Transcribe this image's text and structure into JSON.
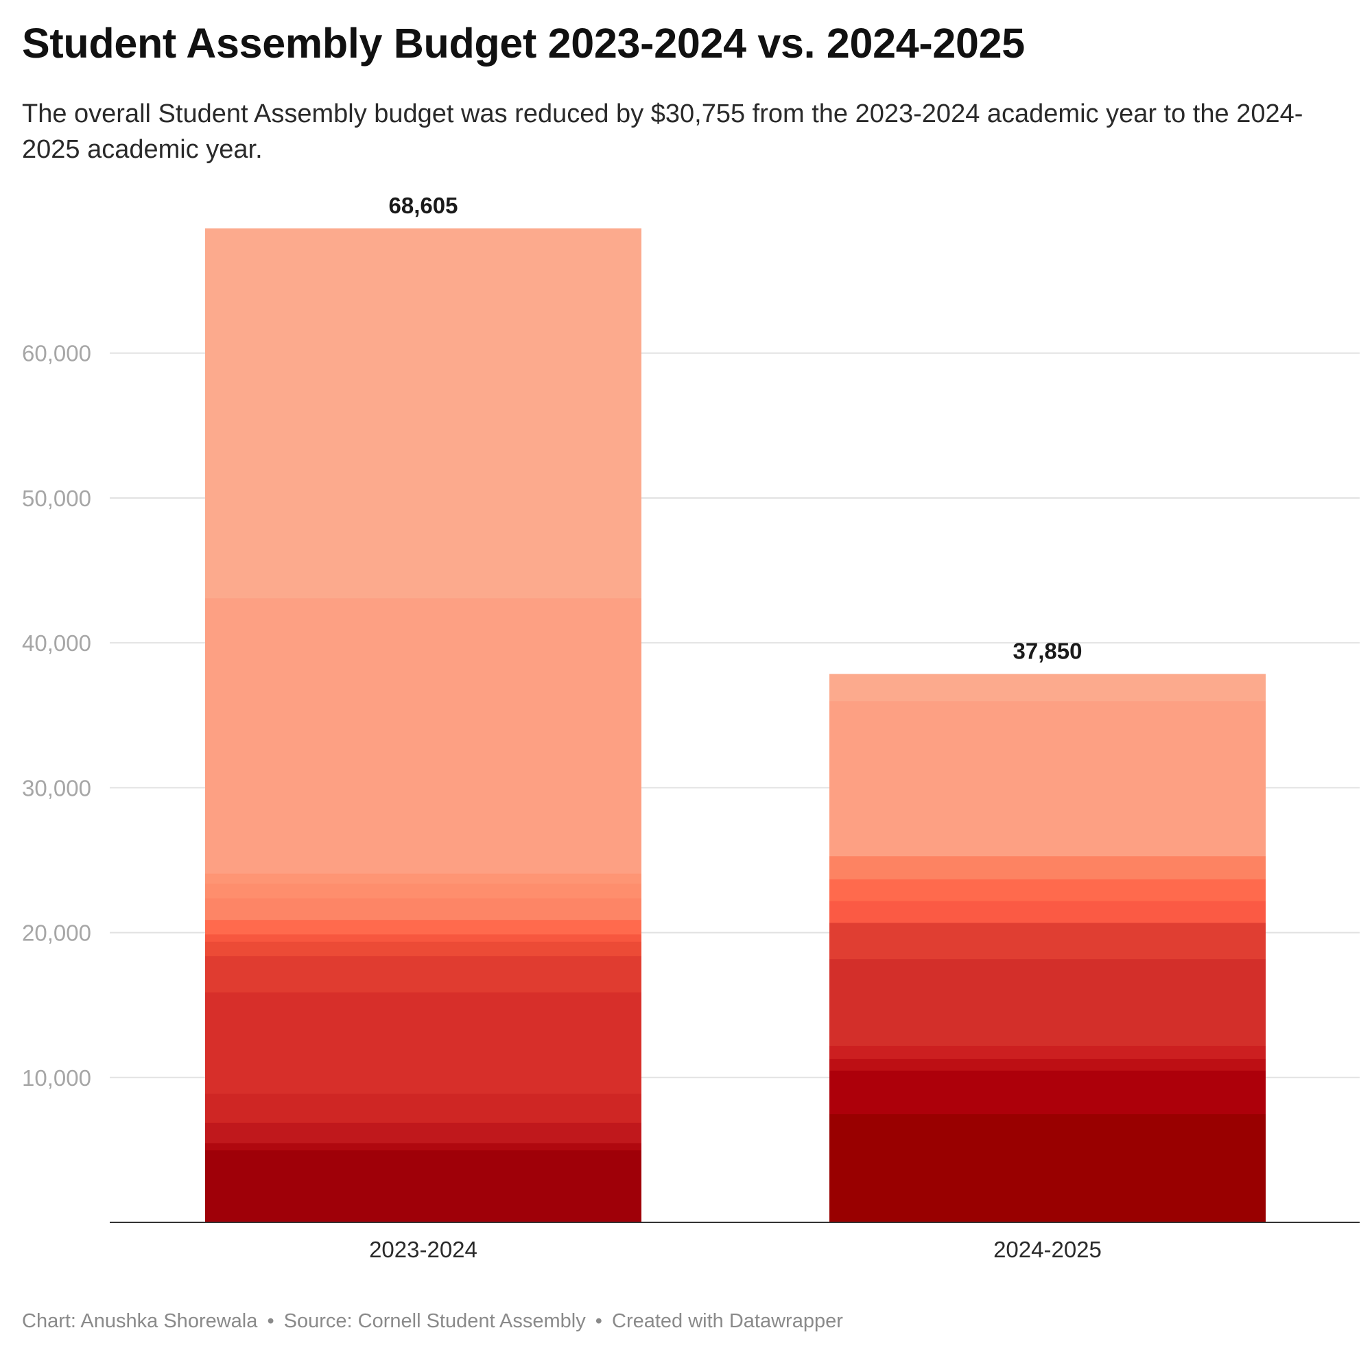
{
  "header": {
    "title": "Student Assembly Budget 2023-2024 vs. 2024-2025",
    "subtitle": "The overall Student Assembly budget was reduced by $30,755 from the 2023-2024 academic year to the 2024-2025 academic year."
  },
  "footer": {
    "chart_credit": "Chart: Anushka Shorewala",
    "separator": "•",
    "source": "Source: Cornell Student Assembly",
    "tool": "Created with Datawrapper"
  },
  "chart_data": {
    "type": "bar",
    "stacked": true,
    "title": "Student Assembly Budget 2023-2024 vs. 2024-2025",
    "subtitle": "The overall Student Assembly budget was reduced by $30,755 from the 2023-2024 academic year to the 2024-2025 academic year.",
    "xlabel": "",
    "ylabel": "",
    "ylim": [
      0,
      68605
    ],
    "yticks": [
      10000,
      20000,
      30000,
      40000,
      50000,
      60000
    ],
    "ytick_labels": [
      "10,000",
      "20,000",
      "30,000",
      "40,000",
      "50,000",
      "60,000"
    ],
    "grid": true,
    "legend": "none",
    "categories": [
      "2023-2024",
      "2024-2025"
    ],
    "totals": [
      68605,
      37850
    ],
    "total_labels": [
      "68,605",
      "37,850"
    ],
    "segments": [
      [
        {
          "value": 5000,
          "color": "#9f0008"
        },
        {
          "value": 500,
          "color": "#b0080f"
        },
        {
          "value": 1400,
          "color": "#c0181c"
        },
        {
          "value": 2000,
          "color": "#cf2624"
        },
        {
          "value": 7000,
          "color": "#d72f2a"
        },
        {
          "value": 2500,
          "color": "#e03c30"
        },
        {
          "value": 1000,
          "color": "#ec4b36"
        },
        {
          "value": 500,
          "color": "#f7573f"
        },
        {
          "value": 1000,
          "color": "#ff6a4d"
        },
        {
          "value": 1500,
          "color": "#fd8566"
        },
        {
          "value": 1000,
          "color": "#fe8e6d"
        },
        {
          "value": 700,
          "color": "#fe9574"
        },
        {
          "value": 19000,
          "color": "#fda083"
        },
        {
          "value": 25505,
          "color": "#fcaa8d"
        }
      ],
      [
        {
          "value": 7500,
          "color": "#990000"
        },
        {
          "value": 3000,
          "color": "#ad000a"
        },
        {
          "value": 800,
          "color": "#bd0f14"
        },
        {
          "value": 900,
          "color": "#cc1f20"
        },
        {
          "value": 6000,
          "color": "#d32f2a"
        },
        {
          "value": 2500,
          "color": "#e03e32"
        },
        {
          "value": 1500,
          "color": "#fb5a44"
        },
        {
          "value": 1500,
          "color": "#ff6a4d"
        },
        {
          "value": 1600,
          "color": "#fd8362"
        },
        {
          "value": 10700,
          "color": "#fda083"
        },
        {
          "value": 1850,
          "color": "#fcaa8d"
        }
      ]
    ]
  }
}
